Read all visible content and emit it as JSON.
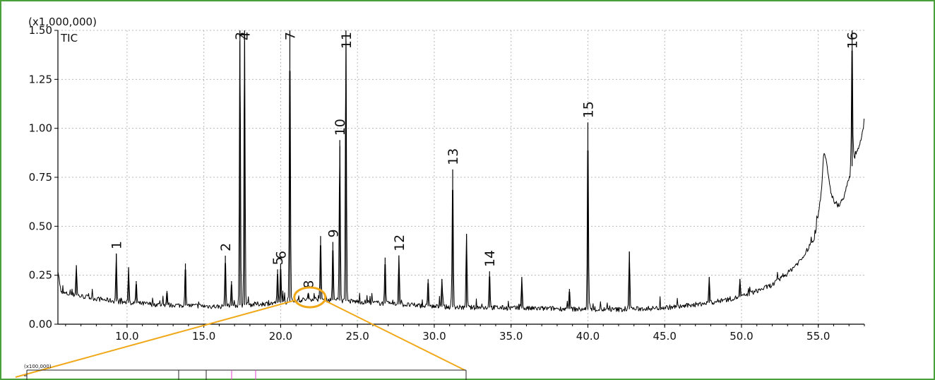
{
  "chart_data": {
    "type": "line",
    "title": "",
    "trace_label": "TIC",
    "y_multiplier": "(x1,000,000)",
    "xlabel": "",
    "ylabel": "",
    "xlim": [
      5.5,
      58.0
    ],
    "ylim": [
      0.0,
      1.5
    ],
    "x_ticks": [
      10.0,
      15.0,
      20.0,
      25.0,
      30.0,
      35.0,
      40.0,
      45.0,
      50.0,
      55.0
    ],
    "x_tick_labels": [
      "10.0",
      "15.0",
      "20.0",
      "25.0",
      "30.0",
      "35.0",
      "40.0",
      "45.0",
      "50.0",
      "55.0"
    ],
    "y_ticks": [
      0.0,
      0.25,
      0.5,
      0.75,
      1.0,
      1.25,
      1.5
    ],
    "y_tick_labels": [
      "0.00",
      "0.25",
      "0.50",
      "0.75",
      "1.00",
      "1.25",
      "1.50"
    ],
    "grid": true,
    "baseline": [
      [
        5.5,
        0.28
      ],
      [
        5.7,
        0.16
      ],
      [
        6.5,
        0.15
      ],
      [
        8,
        0.13
      ],
      [
        10,
        0.11
      ],
      [
        12,
        0.1
      ],
      [
        14,
        0.095
      ],
      [
        16,
        0.09
      ],
      [
        18,
        0.1
      ],
      [
        20,
        0.11
      ],
      [
        22,
        0.13
      ],
      [
        24,
        0.12
      ],
      [
        26,
        0.11
      ],
      [
        28,
        0.1
      ],
      [
        30,
        0.09
      ],
      [
        32,
        0.085
      ],
      [
        34,
        0.085
      ],
      [
        36,
        0.08
      ],
      [
        38,
        0.08
      ],
      [
        40,
        0.075
      ],
      [
        42,
        0.075
      ],
      [
        44,
        0.08
      ],
      [
        46,
        0.09
      ],
      [
        48,
        0.11
      ],
      [
        50,
        0.14
      ],
      [
        52,
        0.2
      ],
      [
        53,
        0.26
      ],
      [
        54,
        0.34
      ],
      [
        54.8,
        0.45
      ],
      [
        55.2,
        0.68
      ],
      [
        55.35,
        0.87
      ],
      [
        55.5,
        0.84
      ],
      [
        55.8,
        0.68
      ],
      [
        56.1,
        0.61
      ],
      [
        56.4,
        0.61
      ],
      [
        56.7,
        0.66
      ],
      [
        57.0,
        0.74
      ],
      [
        57.3,
        0.84
      ],
      [
        57.6,
        0.9
      ],
      [
        57.9,
        0.98
      ],
      [
        58.0,
        1.07
      ]
    ],
    "peaks": [
      {
        "rt": 6.7,
        "height": 0.3,
        "label": ""
      },
      {
        "rt": 9.3,
        "height": 0.36,
        "label": "1"
      },
      {
        "rt": 10.1,
        "height": 0.29,
        "label": ""
      },
      {
        "rt": 10.6,
        "height": 0.22,
        "label": ""
      },
      {
        "rt": 12.6,
        "height": 0.17,
        "label": ""
      },
      {
        "rt": 13.8,
        "height": 0.31,
        "label": ""
      },
      {
        "rt": 16.4,
        "height": 0.35,
        "label": "2"
      },
      {
        "rt": 16.8,
        "height": 0.22,
        "label": ""
      },
      {
        "rt": 17.35,
        "height": 1.5,
        "label": "3"
      },
      {
        "rt": 17.65,
        "height": 1.5,
        "label": "4"
      },
      {
        "rt": 19.8,
        "height": 0.28,
        "label": "5"
      },
      {
        "rt": 20.0,
        "height": 0.31,
        "label": "6"
      },
      {
        "rt": 20.6,
        "height": 1.5,
        "label": "7"
      },
      {
        "rt": 21.8,
        "height": 0.16,
        "label": "8"
      },
      {
        "rt": 22.6,
        "height": 0.45,
        "label": ""
      },
      {
        "rt": 23.4,
        "height": 0.42,
        "label": "9"
      },
      {
        "rt": 23.85,
        "height": 0.94,
        "label": "10"
      },
      {
        "rt": 24.25,
        "height": 1.5,
        "label": "11"
      },
      {
        "rt": 26.8,
        "height": 0.34,
        "label": ""
      },
      {
        "rt": 27.7,
        "height": 0.35,
        "label": "12"
      },
      {
        "rt": 29.6,
        "height": 0.23,
        "label": ""
      },
      {
        "rt": 30.5,
        "height": 0.23,
        "label": ""
      },
      {
        "rt": 31.2,
        "height": 0.79,
        "label": "13"
      },
      {
        "rt": 32.1,
        "height": 0.46,
        "label": ""
      },
      {
        "rt": 33.6,
        "height": 0.27,
        "label": "14"
      },
      {
        "rt": 35.7,
        "height": 0.24,
        "label": ""
      },
      {
        "rt": 38.8,
        "height": 0.18,
        "label": ""
      },
      {
        "rt": 40.0,
        "height": 1.03,
        "label": "15"
      },
      {
        "rt": 42.7,
        "height": 0.37,
        "label": ""
      },
      {
        "rt": 47.9,
        "height": 0.24,
        "label": ""
      },
      {
        "rt": 49.9,
        "height": 0.23,
        "label": ""
      },
      {
        "rt": 57.2,
        "height": 1.5,
        "label": "16"
      }
    ]
  },
  "highlight": {
    "center_rt": 21.9,
    "center_value": 0.13,
    "color": "#f0a818"
  },
  "inset": {
    "y_multiplier": "(x100,000)",
    "border_color": "#222222",
    "marker_color": "#e040c8"
  },
  "colors": {
    "frame": "#4aa03a",
    "line": "#000000",
    "grid": "#b8b8b8",
    "highlight": "#f0a818"
  }
}
